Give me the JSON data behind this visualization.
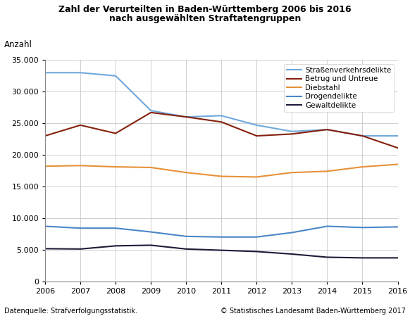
{
  "title_line1": "Zahl der Verurteilten in Baden-Württemberg 2006 bis 2016",
  "title_line2": "nach ausgewählten Straftatengruppen",
  "ylabel": "Anzahl",
  "years": [
    2006,
    2007,
    2008,
    2009,
    2010,
    2011,
    2012,
    2013,
    2014,
    2015,
    2016
  ],
  "series": {
    "Straßenverkehrsdelikte": {
      "values": [
        33000,
        33000,
        32500,
        27000,
        26000,
        26200,
        24700,
        23700,
        24000,
        23000,
        23000
      ],
      "color": "#6FA8DC",
      "linewidth": 1.5
    },
    "Betrug und Untreue": {
      "values": [
        23000,
        24700,
        23400,
        26700,
        26000,
        25200,
        23000,
        23300,
        24000,
        23000,
        21100
      ],
      "color": "#85200C",
      "linewidth": 1.5
    },
    "Diebstahl": {
      "values": [
        18200,
        18300,
        18100,
        18000,
        17200,
        16600,
        16500,
        17200,
        17400,
        18100,
        18500
      ],
      "color": "#E69138",
      "linewidth": 1.5
    },
    "Drogendelikte": {
      "values": [
        8700,
        8400,
        8400,
        7800,
        7100,
        7000,
        7000,
        7700,
        8700,
        8500,
        8600
      ],
      "color": "#4A86C8",
      "linewidth": 1.5
    },
    "Gewaltdelikte": {
      "values": [
        5150,
        5100,
        5600,
        5700,
        5100,
        4900,
        4700,
        4300,
        3800,
        3700,
        3700
      ],
      "color": "#1C1C3A",
      "linewidth": 1.5
    }
  },
  "ylim": [
    0,
    35000
  ],
  "yticks": [
    0,
    5000,
    10000,
    15000,
    20000,
    25000,
    30000,
    35000
  ],
  "footnote_left": "Datenquelle: Strafverfolgungsstatistik.",
  "footnote_right": "© Statistisches Landesamt Baden-Württemberg 2017",
  "background_color": "#FFFFFF",
  "plot_bg_color": "#FFFFFF",
  "grid_color": "#C8C8C8",
  "legend_order": [
    "Straßenverkehrsdelikte",
    "Betrug und Untreue",
    "Diebstahl",
    "Drogendelikte",
    "Gewaltdelikte"
  ]
}
